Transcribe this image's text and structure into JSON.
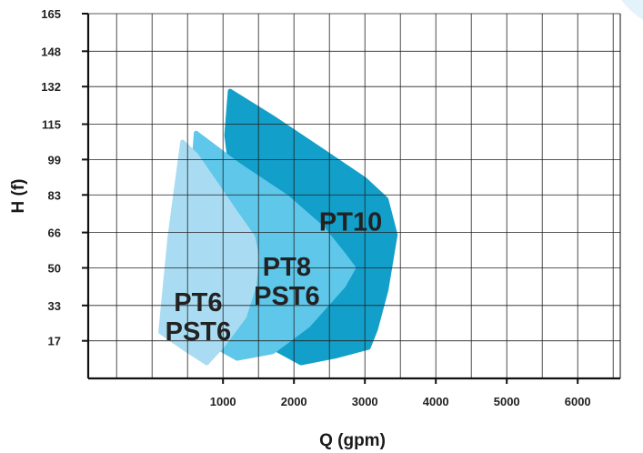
{
  "chart_data": {
    "type": "area",
    "xlabel": "Q (gpm)",
    "ylabel": "H (f)",
    "x_ticks": [
      1000,
      2000,
      3000,
      4000,
      5000,
      6000
    ],
    "y_ticks": [
      17,
      33,
      50,
      66,
      83,
      99,
      115,
      132,
      148,
      165
    ],
    "xlim": [
      -900,
      6600
    ],
    "ylim": [
      0,
      165
    ],
    "grid": true,
    "colors": {
      "grid": "#222222",
      "axis": "#111111",
      "corner_glow": "#e3f3fb"
    },
    "series": [
      {
        "name": "PT10",
        "color": "#129fc9",
        "points": [
          [
            1100,
            130
          ],
          [
            1700,
            118
          ],
          [
            2400,
            103
          ],
          [
            3000,
            90
          ],
          [
            3300,
            81
          ],
          [
            3430,
            65
          ],
          [
            3300,
            40
          ],
          [
            3150,
            22
          ],
          [
            3050,
            14
          ],
          [
            2580,
            10
          ],
          [
            2100,
            7
          ],
          [
            1700,
            14
          ],
          [
            1350,
            17
          ],
          [
            1200,
            72
          ],
          [
            1050,
            110
          ]
        ],
        "label_lines": [
          "PT10"
        ],
        "label_at": [
          2800,
          71
        ]
      },
      {
        "name": "PT8 PST6",
        "color": "#5ec7ea",
        "points": [
          [
            620,
            111
          ],
          [
            1200,
            97
          ],
          [
            1900,
            82
          ],
          [
            2400,
            68
          ],
          [
            2700,
            56
          ],
          [
            2840,
            50
          ],
          [
            2700,
            42
          ],
          [
            2200,
            24
          ],
          [
            1700,
            12
          ],
          [
            1200,
            9
          ],
          [
            980,
            13
          ],
          [
            1000,
            45
          ],
          [
            600,
            102
          ]
        ],
        "label_lines": [
          "PT8",
          "PST6"
        ],
        "label_at": [
          1900,
          44
        ]
      },
      {
        "name": "PT6 PST6",
        "color": "#a9dcf2",
        "points": [
          [
            430,
            107
          ],
          [
            620,
            101
          ],
          [
            900,
            88
          ],
          [
            1200,
            74
          ],
          [
            1420,
            64
          ],
          [
            1480,
            55
          ],
          [
            1440,
            42
          ],
          [
            1300,
            28
          ],
          [
            1000,
            15
          ],
          [
            770,
            7
          ],
          [
            480,
            13
          ],
          [
            120,
            21
          ],
          [
            250,
            64
          ]
        ],
        "label_lines": [
          "PT6",
          "PST6"
        ],
        "label_at": [
          650,
          28
        ]
      }
    ]
  }
}
